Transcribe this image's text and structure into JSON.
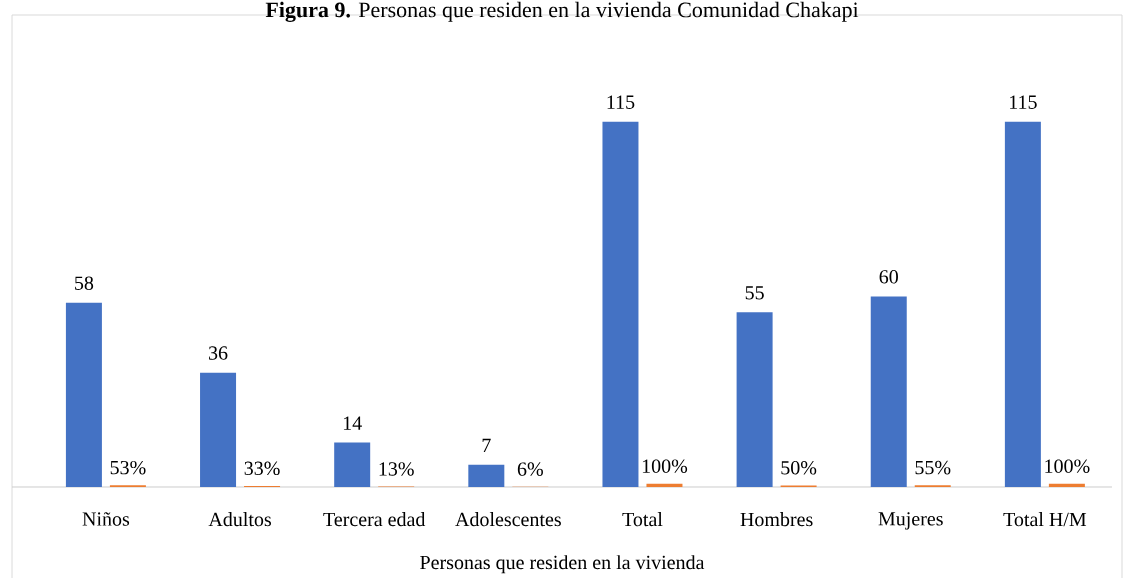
{
  "chart_data": {
    "type": "bar",
    "title": "**Figura 9.** Personas que residen en la vivienda Comunidad Chakapi",
    "xlabel": "Personas que residen en la vivienda",
    "categories": [
      "Niños",
      "Adultos",
      "Tercera edad",
      "Adolescentes",
      "Total",
      "Hombres",
      "Mujeres",
      "Total H/M"
    ],
    "series": [
      {
        "color": "#4472c4",
        "values": [
          58,
          36,
          14,
          7,
          115,
          55,
          60,
          115
        ]
      },
      {
        "color": "#ed7d31",
        "values": [
          0.53,
          0.33,
          0.13,
          0.06,
          1,
          0.5,
          0.55,
          1
        ],
        "value_labels": [
          "53%",
          "33%",
          "13%",
          "6%",
          "100%",
          "50%",
          "55%",
          "100%"
        ]
      }
    ],
    "tick_labels": "x",
    "data_labels": true
  }
}
